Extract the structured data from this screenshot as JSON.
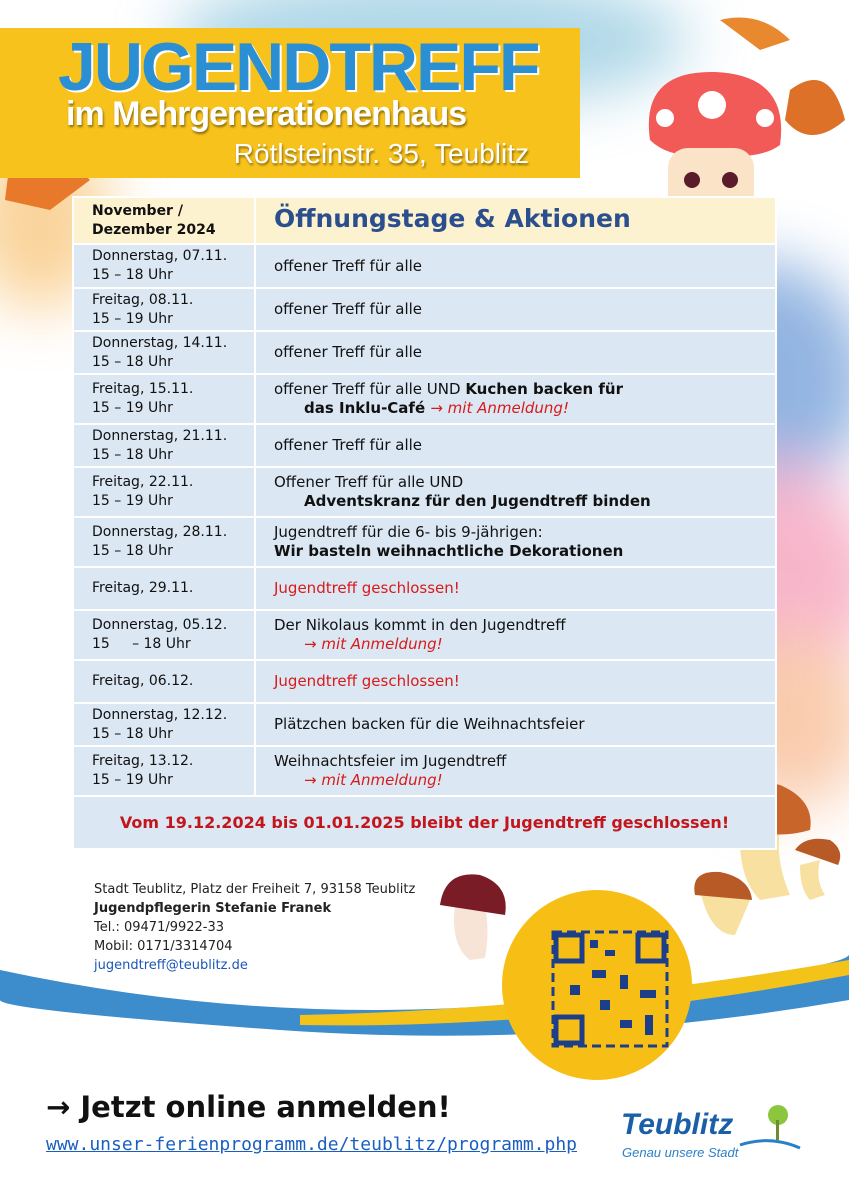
{
  "header": {
    "title": "JUGENDTREFF",
    "subtitle": "im Mehrgenerationenhaus",
    "address": "Rötlsteinstr. 35, Teublitz"
  },
  "table": {
    "head": {
      "period": [
        "November /",
        "Dezember 2024"
      ],
      "heading": "Öffnungstage & Aktionen"
    },
    "rows": [
      {
        "day": "Donnerstag, 07.11.",
        "time": "15 – 18 Uhr",
        "activity": [
          "offener Treff für alle"
        ]
      },
      {
        "day": "Freitag, 08.11.",
        "time": "15 – 19 Uhr",
        "activity": [
          "offener Treff für alle"
        ]
      },
      {
        "day": "Donnerstag, 14.11.",
        "time": "15 – 18 Uhr",
        "activity": [
          "offener Treff für alle"
        ]
      },
      {
        "day": "Freitag, 15.11.",
        "time": "15 – 19 Uhr",
        "activity": [
          "offener Treff für alle UND ",
          "Kuchen backen für",
          "das Inklu-Café ",
          "→ mit Anmeldung!"
        ]
      },
      {
        "day": "Donnerstag, 21.11.",
        "time": "15 – 18 Uhr",
        "activity": [
          "offener Treff für alle"
        ]
      },
      {
        "day": "Freitag, 22.11.",
        "time": "15 – 19 Uhr",
        "activity": [
          "Offener Treff für alle UND",
          "Adventskranz für den Jugendtreff binden"
        ]
      },
      {
        "day": "Donnerstag, 28.11.",
        "time": "15 – 18 Uhr",
        "activity": [
          "Jugendtreff für die 6- bis 9-jährigen:",
          "Wir basteln weihnachtliche Dekorationen"
        ]
      },
      {
        "day": "Freitag, 29.11.",
        "activity": [
          "Jugendtreff geschlossen!"
        ]
      },
      {
        "day": "Donnerstag, 05.12.",
        "time": "15     – 18 Uhr",
        "activity": [
          "Der Nikolaus kommt in den Jugendtreff",
          "→ mit Anmeldung!"
        ]
      },
      {
        "day": "Freitag, 06.12.",
        "activity": [
          "Jugendtreff geschlossen!"
        ]
      },
      {
        "day": "Donnerstag, 12.12.",
        "time": "15 – 18 Uhr",
        "activity": [
          "Plätzchen backen für die Weihnachtsfeier"
        ]
      },
      {
        "day": "Freitag, 13.12.",
        "time": "15 – 19 Uhr",
        "activity": [
          "Weihnachtsfeier im Jugendtreff",
          "→ mit Anmeldung!"
        ]
      }
    ],
    "footer": "Vom 19.12.2024 bis 01.01.2025 bleibt der Jugendtreff geschlossen!"
  },
  "contact": {
    "address": "Stadt Teublitz, Platz der Freiheit 7, 93158 Teublitz",
    "person": "Jugendpflegerin Stefanie Franek",
    "phone": "Tel.: 09471/9922-33",
    "mobile": "Mobil: 0171/3314704",
    "email": "jugendtreff@teublitz.de"
  },
  "cta": {
    "text": "→ Jetzt online anmelden!",
    "url": "www.unser-ferienprogramm.de/teublitz/programm.php"
  },
  "logo": {
    "name": "Teublitz",
    "slogan": "Genau unsere Stadt"
  }
}
